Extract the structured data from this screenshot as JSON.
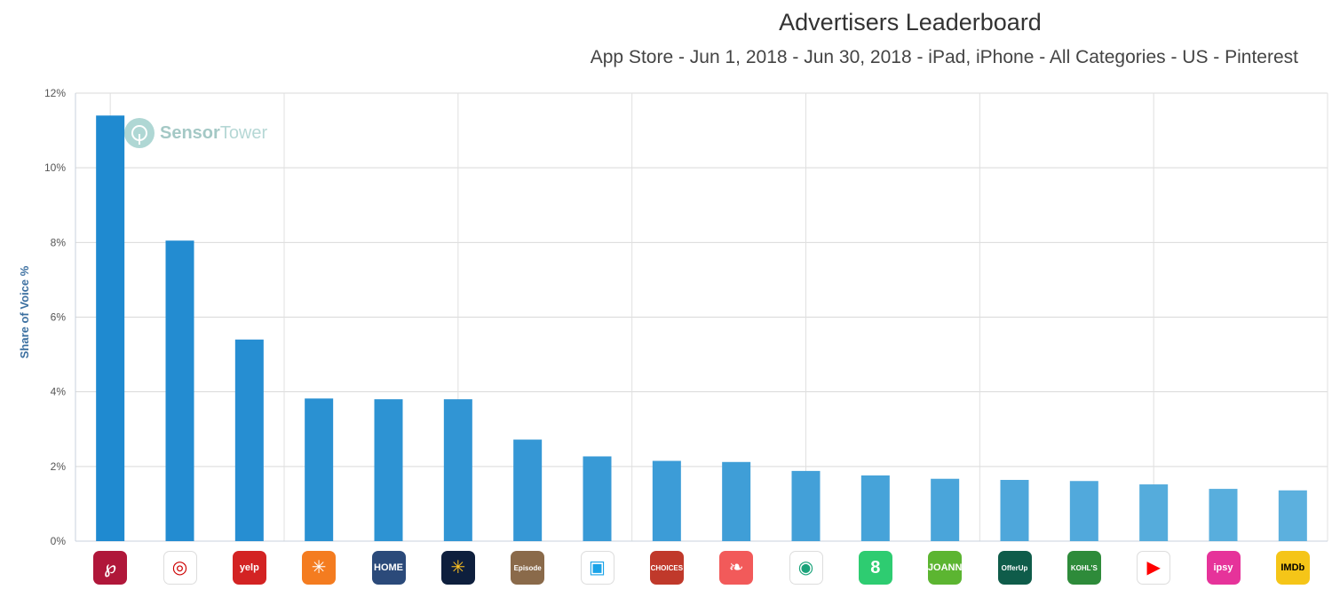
{
  "chart_data": {
    "type": "bar",
    "title": "Advertisers Leaderboard",
    "subtitle": "App Store - Jun 1, 2018 - Jun 30, 2018 - iPad, iPhone - All Categories - US - Pinterest",
    "ylabel": "Share of Voice %",
    "xlabel": "",
    "ylim": [
      0,
      12
    ],
    "yticks": [
      "0%",
      "2%",
      "4%",
      "6%",
      "8%",
      "10%",
      "12%"
    ],
    "grid": true,
    "legend": "none",
    "categories": [
      "Pinterest",
      "Target",
      "Yelp",
      "Walmart Grocery",
      "Home Design",
      "Walmart",
      "Episode",
      "App Store",
      "Choices",
      "Hopper",
      "Mint",
      "Pinterest Lens",
      "JOANN",
      "OfferUp",
      "Kohl's",
      "YouTube",
      "ipsy",
      "IMDb"
    ],
    "values": [
      11.4,
      8.05,
      5.4,
      3.82,
      3.8,
      3.8,
      2.72,
      2.27,
      2.15,
      2.12,
      1.88,
      1.76,
      1.67,
      1.64,
      1.61,
      1.52,
      1.4,
      1.36
    ],
    "bar_color": "#1f8ad0"
  },
  "watermark": {
    "brand_bold": "Sensor",
    "brand_light": "Tower"
  },
  "icons": [
    {
      "name": "pinterest-icon",
      "bg": "#b0173a",
      "glyph": "℘",
      "text": ""
    },
    {
      "name": "target-icon",
      "bg": "#ffffff",
      "glyph": "◎",
      "text": "",
      "color": "#cc0000"
    },
    {
      "name": "yelp-icon",
      "bg": "#d32323",
      "glyph": "",
      "text": "yelp"
    },
    {
      "name": "walmart-grocery-icon",
      "bg": "#f47c20",
      "glyph": "✳",
      "text": ""
    },
    {
      "name": "home-design-icon",
      "bg": "#2b4a7a",
      "glyph": "",
      "text": "HOME"
    },
    {
      "name": "walmart-icon",
      "bg": "#0e1f3d",
      "glyph": "✳",
      "text": "",
      "color": "#ffc220"
    },
    {
      "name": "episode-icon",
      "bg": "#8a6a4a",
      "glyph": "",
      "text": "Episode"
    },
    {
      "name": "app-store-icon",
      "bg": "#ffffff",
      "glyph": "▣",
      "text": "",
      "color": "#1aa3e8"
    },
    {
      "name": "choices-icon",
      "bg": "#c0392b",
      "glyph": "",
      "text": "CHOICES"
    },
    {
      "name": "hopper-icon",
      "bg": "#f25a5a",
      "glyph": "❧",
      "text": ""
    },
    {
      "name": "mint-icon",
      "bg": "#ffffff",
      "glyph": "◉",
      "text": "",
      "color": "#1aa37a"
    },
    {
      "name": "pinterest-lens-icon",
      "bg": "#2ecc71",
      "glyph": "8",
      "text": ""
    },
    {
      "name": "joann-icon",
      "bg": "#5cb531",
      "glyph": "",
      "text": "JOANN"
    },
    {
      "name": "offerup-icon",
      "bg": "#0f5c4a",
      "glyph": "",
      "text": "OfferUp"
    },
    {
      "name": "kohls-icon",
      "bg": "#2e8b3a",
      "glyph": "",
      "text": "KOHL'S"
    },
    {
      "name": "youtube-icon",
      "bg": "#ffffff",
      "glyph": "▶",
      "text": "",
      "color": "#ff0000"
    },
    {
      "name": "ipsy-icon",
      "bg": "#e6339a",
      "glyph": "",
      "text": "ipsy"
    },
    {
      "name": "imdb-icon",
      "bg": "#f5c518",
      "glyph": "",
      "text": "IMDb",
      "color": "#000000"
    }
  ]
}
